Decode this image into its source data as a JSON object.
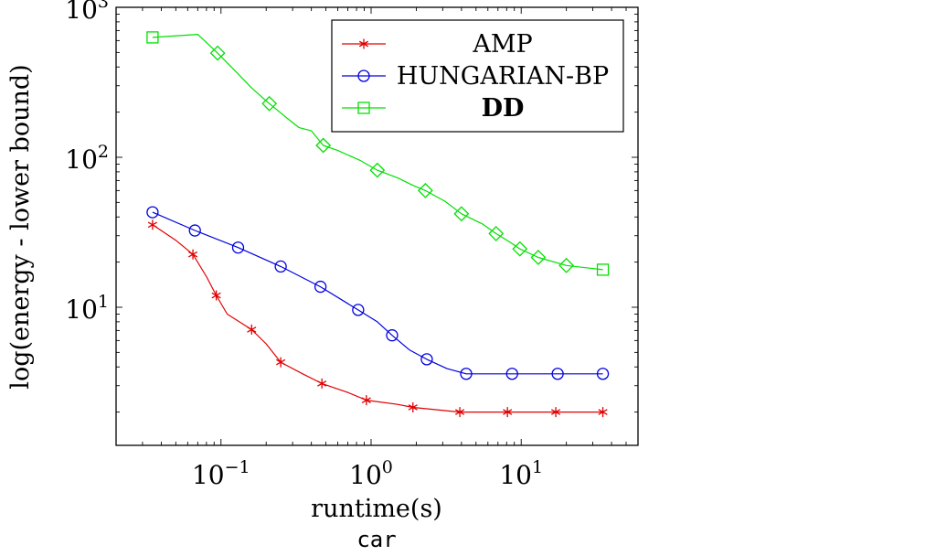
{
  "chart_data": {
    "type": "line",
    "title": "",
    "caption": "car",
    "xlabel": "runtime(s)",
    "ylabel": "log(energy - lower bound)",
    "xscale": "log",
    "yscale": "log",
    "xlim": [
      0.02,
      60
    ],
    "ylim": [
      1.2,
      1000
    ],
    "grid": false,
    "legend_position": "top-right",
    "x_tick_labels": [
      {
        "base": "10",
        "exp": "−1",
        "value": 0.1
      },
      {
        "base": "10",
        "exp": "0",
        "value": 1
      },
      {
        "base": "10",
        "exp": "1",
        "value": 10
      }
    ],
    "y_tick_labels": [
      {
        "base": "10",
        "exp": "1",
        "value": 10
      },
      {
        "base": "10",
        "exp": "2",
        "value": 100
      },
      {
        "base": "10",
        "exp": "3",
        "value": 1000
      }
    ],
    "series": [
      {
        "name": "AMP",
        "color": "#e00000",
        "marker": "star",
        "line": [
          [
            0.035,
            35.5
          ],
          [
            0.05,
            28
          ],
          [
            0.065,
            22.5
          ],
          [
            0.08,
            16
          ],
          [
            0.093,
            12
          ],
          [
            0.11,
            9
          ],
          [
            0.16,
            7.1
          ],
          [
            0.2,
            5.7
          ],
          [
            0.25,
            4.3
          ],
          [
            0.35,
            3.6
          ],
          [
            0.47,
            3.1
          ],
          [
            0.7,
            2.7
          ],
          [
            0.93,
            2.4
          ],
          [
            1.5,
            2.25
          ],
          [
            1.9,
            2.15
          ],
          [
            3.9,
            2.0
          ],
          [
            8.1,
            2.0
          ],
          [
            17,
            2.0
          ],
          [
            35,
            2.0
          ]
        ],
        "markers": [
          [
            0.035,
            35.5
          ],
          [
            0.065,
            22.5
          ],
          [
            0.093,
            12
          ],
          [
            0.16,
            7.1
          ],
          [
            0.25,
            4.3
          ],
          [
            0.47,
            3.1
          ],
          [
            0.93,
            2.4
          ],
          [
            1.9,
            2.15
          ],
          [
            3.9,
            2.0
          ],
          [
            8.1,
            2.0
          ],
          [
            17,
            2.0
          ],
          [
            35,
            2.0
          ]
        ]
      },
      {
        "name": "HUNGARIAN-BP",
        "color": "#0000e0",
        "marker": "circle",
        "line": [
          [
            0.035,
            43
          ],
          [
            0.067,
            32.5
          ],
          [
            0.13,
            25
          ],
          [
            0.25,
            18.7
          ],
          [
            0.46,
            13.7
          ],
          [
            0.82,
            9.6
          ],
          [
            1.1,
            8
          ],
          [
            1.38,
            6.5
          ],
          [
            1.8,
            5.2
          ],
          [
            2.35,
            4.5
          ],
          [
            3.2,
            3.9
          ],
          [
            4.3,
            3.6
          ],
          [
            8.7,
            3.6
          ],
          [
            17.5,
            3.6
          ],
          [
            35,
            3.6
          ]
        ],
        "markers": [
          [
            0.035,
            43
          ],
          [
            0.067,
            32.5
          ],
          [
            0.13,
            25
          ],
          [
            0.25,
            18.7
          ],
          [
            0.46,
            13.7
          ],
          [
            0.82,
            9.6
          ],
          [
            1.38,
            6.5
          ],
          [
            2.35,
            4.5
          ],
          [
            4.3,
            3.6
          ],
          [
            8.7,
            3.6
          ],
          [
            17.5,
            3.6
          ],
          [
            35,
            3.6
          ]
        ]
      },
      {
        "name": "DD",
        "color": "#00e000",
        "marker": "square",
        "bold": true,
        "line": [
          [
            0.035,
            630
          ],
          [
            0.07,
            660
          ],
          [
            0.095,
            495
          ],
          [
            0.13,
            360
          ],
          [
            0.16,
            290
          ],
          [
            0.21,
            228
          ],
          [
            0.28,
            180
          ],
          [
            0.33,
            158
          ],
          [
            0.4,
            150
          ],
          [
            0.48,
            120
          ],
          [
            0.6,
            111
          ],
          [
            0.85,
            95
          ],
          [
            1.1,
            82
          ],
          [
            1.5,
            73
          ],
          [
            1.9,
            65
          ],
          [
            2.3,
            60
          ],
          [
            3.1,
            51
          ],
          [
            4.0,
            42
          ],
          [
            5.5,
            36
          ],
          [
            6.8,
            31
          ],
          [
            8.5,
            27
          ],
          [
            9.8,
            24.5
          ],
          [
            13,
            21.5
          ],
          [
            20,
            19
          ],
          [
            35,
            17.8
          ]
        ],
        "markers": [
          [
            0.035,
            630
          ],
          [
            0.095,
            495
          ],
          [
            0.21,
            228
          ],
          [
            0.48,
            120
          ],
          [
            1.1,
            82
          ],
          [
            2.3,
            60
          ],
          [
            4.0,
            42
          ],
          [
            6.8,
            31
          ],
          [
            9.8,
            24.5
          ],
          [
            13,
            21.5
          ],
          [
            20,
            19
          ],
          [
            35,
            17.8
          ]
        ]
      }
    ]
  }
}
